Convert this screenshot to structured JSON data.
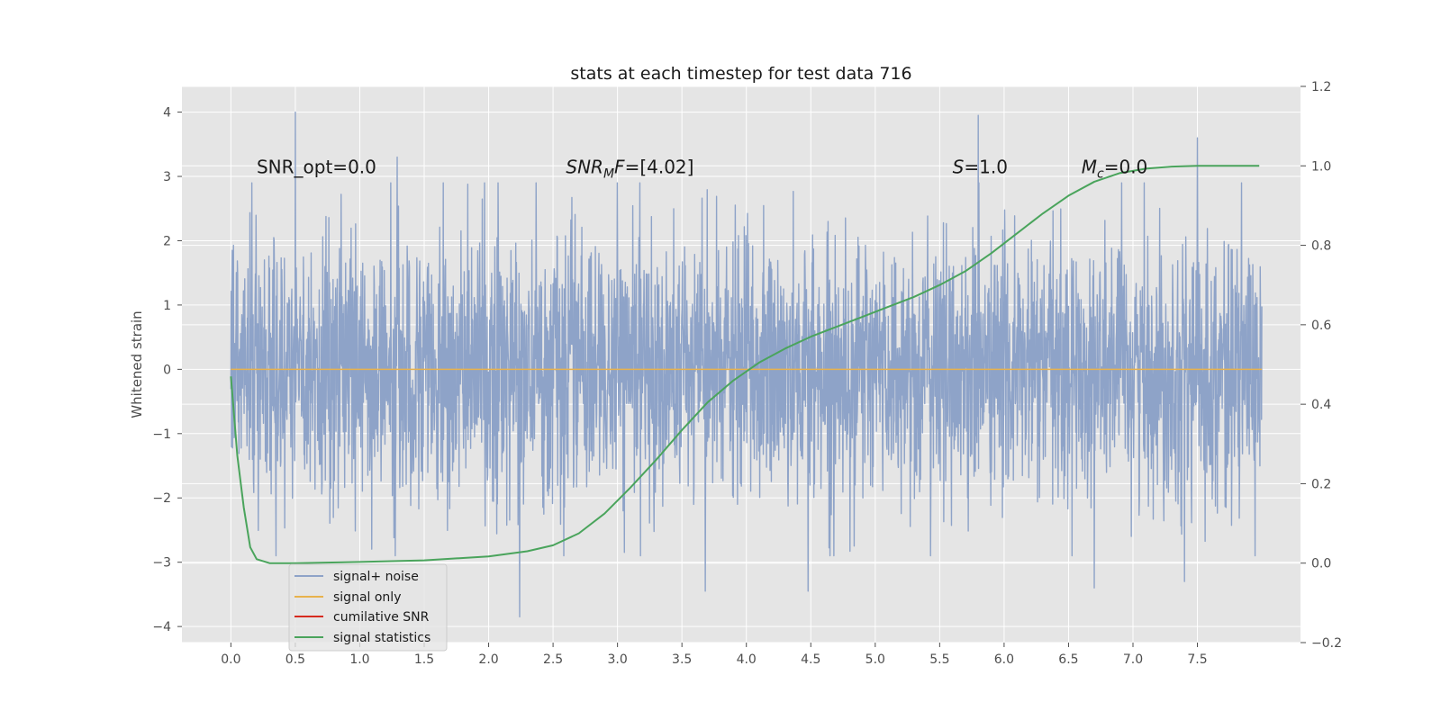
{
  "chart_data": {
    "type": "line",
    "title": "stats at each timestep for test data 716",
    "ylabel": "Whitened strain",
    "y2label": "",
    "xlim": [
      -0.38,
      8.3
    ],
    "ylim": [
      -4.25,
      4.4
    ],
    "y2lim": [
      -0.2,
      1.2
    ],
    "x_ticks": [
      0.0,
      0.5,
      1.0,
      1.5,
      2.0,
      2.5,
      3.0,
      3.5,
      4.0,
      4.5,
      5.0,
      5.5,
      6.0,
      6.5,
      7.0,
      7.5
    ],
    "x_tick_labels": [
      "0.0",
      "0.5",
      "1.0",
      "1.5",
      "2.0",
      "2.5",
      "3.0",
      "3.5",
      "4.0",
      "4.5",
      "5.0",
      "5.5",
      "6.0",
      "6.5",
      "7.0",
      "7.5"
    ],
    "y_ticks": [
      4,
      3,
      2,
      1,
      0,
      -1,
      -2,
      -3,
      -4
    ],
    "y_tick_labels": [
      "4",
      "3",
      "2",
      "1",
      "0",
      "−1",
      "−2",
      "−3",
      "−4"
    ],
    "y2_ticks": [
      1.2,
      1.0,
      0.8,
      0.6,
      0.4,
      0.2,
      0.0,
      -0.2
    ],
    "y2_tick_labels": [
      "1.2",
      "1.0",
      "0.8",
      "0.6",
      "0.4",
      "0.2",
      "0.0",
      "−0.2"
    ],
    "grid": true,
    "legend_position": "lower-left",
    "colors": {
      "signal_noise": "#8ea3c8",
      "signal_only": "#e8b24c",
      "cumulative_snr": "#d62a1e",
      "signal_statistics": "#4aa45c",
      "axes_bg": "#e5e5e5",
      "grid": "#ffffff"
    },
    "series": [
      {
        "name": "signal+ noise",
        "x_range": [
          0.0,
          8.0
        ],
        "y_approx_range": [
          -3.85,
          4.0
        ],
        "typical_spread": [
          -1.9,
          1.9
        ],
        "notable_peaks": [
          [
            0.5,
            4.0
          ],
          [
            1.29,
            3.3
          ],
          [
            5.8,
            3.95
          ],
          [
            7.5,
            3.6
          ],
          [
            2.24,
            -3.85
          ],
          [
            3.68,
            -3.45
          ],
          [
            4.48,
            -3.45
          ],
          [
            7.4,
            -3.3
          ],
          [
            6.7,
            -3.4
          ]
        ]
      },
      {
        "name": "signal only",
        "x": [
          0.0,
          8.0
        ],
        "y": [
          0.0,
          0.0
        ]
      },
      {
        "name": "cumilative SNR",
        "x": [],
        "y": []
      },
      {
        "name": "signal statistics",
        "axis": "right",
        "x": [
          0.0,
          0.05,
          0.1,
          0.15,
          0.2,
          0.3,
          0.5,
          1.0,
          1.5,
          2.0,
          2.3,
          2.5,
          2.7,
          2.9,
          3.1,
          3.3,
          3.5,
          3.7,
          3.9,
          4.1,
          4.3,
          4.5,
          4.7,
          4.9,
          5.1,
          5.3,
          5.5,
          5.7,
          5.9,
          6.1,
          6.3,
          6.5,
          6.7,
          6.9,
          7.1,
          7.3,
          7.5,
          7.7,
          7.98
        ],
        "y": [
          0.47,
          0.27,
          0.14,
          0.04,
          0.01,
          0.0,
          0.0,
          0.003,
          0.007,
          0.017,
          0.03,
          0.045,
          0.075,
          0.125,
          0.19,
          0.26,
          0.335,
          0.405,
          0.46,
          0.505,
          0.54,
          0.57,
          0.595,
          0.62,
          0.645,
          0.67,
          0.7,
          0.735,
          0.78,
          0.83,
          0.88,
          0.925,
          0.96,
          0.982,
          0.993,
          0.998,
          1.0,
          1.0,
          1.0
        ]
      }
    ],
    "annotations": [
      {
        "name": "snr-opt",
        "x": 0.2,
        "y": 3.15,
        "text": "SNR_opt=0.0"
      },
      {
        "name": "snr-mf",
        "x": 2.6,
        "y": 3.15,
        "prefix": "SNR",
        "subscript": "M",
        "suffix": "F=[4.02]"
      },
      {
        "name": "s-value",
        "x": 5.6,
        "y": 3.15,
        "prefix": "S",
        "subscript": "",
        "suffix": "=1.0"
      },
      {
        "name": "mc-value",
        "x": 6.6,
        "y": 3.15,
        "prefix": "M",
        "subscript": "c",
        "suffix": "=0.0"
      }
    ]
  }
}
